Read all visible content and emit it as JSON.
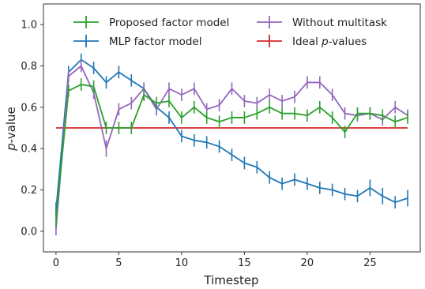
{
  "chart_data": {
    "type": "line",
    "title": "",
    "xlabel": "Timestep",
    "ylabel_prefix": "p",
    "ylabel_suffix": "-value",
    "xlim": [
      -1,
      29
    ],
    "ylim": [
      -0.1,
      1.1
    ],
    "xticks": [
      0,
      5,
      10,
      15,
      20,
      25
    ],
    "xtick_labels": [
      "0",
      "5",
      "10",
      "15",
      "20",
      "25"
    ],
    "yticks": [
      0.0,
      0.2,
      0.4,
      0.6,
      0.8,
      1.0
    ],
    "ytick_labels": [
      "0.0",
      "0.2",
      "0.4",
      "0.6",
      "0.8",
      "1.0"
    ],
    "grid": false,
    "legend_position": "top",
    "x": [
      0,
      1,
      2,
      3,
      4,
      5,
      6,
      7,
      8,
      9,
      10,
      11,
      12,
      13,
      14,
      15,
      16,
      17,
      18,
      19,
      20,
      21,
      22,
      23,
      24,
      25,
      26,
      27,
      28
    ],
    "series": [
      {
        "name": "Proposed factor model",
        "color": "#2ca02c",
        "values": [
          0.06,
          0.68,
          0.71,
          0.7,
          0.5,
          0.5,
          0.5,
          0.66,
          0.62,
          0.63,
          0.55,
          0.6,
          0.55,
          0.53,
          0.55,
          0.55,
          0.57,
          0.6,
          0.57,
          0.57,
          0.56,
          0.6,
          0.55,
          0.48,
          0.57,
          0.57,
          0.56,
          0.53,
          0.55
        ],
        "errors": [
          0.04,
          0.03,
          0.03,
          0.03,
          0.03,
          0.03,
          0.03,
          0.03,
          0.03,
          0.03,
          0.03,
          0.03,
          0.03,
          0.03,
          0.03,
          0.03,
          0.03,
          0.03,
          0.03,
          0.03,
          0.03,
          0.03,
          0.03,
          0.03,
          0.03,
          0.03,
          0.03,
          0.03,
          0.03
        ]
      },
      {
        "name": "MLP factor model",
        "color": "#1f77b4",
        "values": [
          0.1,
          0.77,
          0.83,
          0.79,
          0.72,
          0.77,
          0.73,
          0.69,
          0.6,
          0.55,
          0.46,
          0.44,
          0.43,
          0.41,
          0.37,
          0.33,
          0.31,
          0.26,
          0.23,
          0.25,
          0.23,
          0.21,
          0.2,
          0.18,
          0.17,
          0.21,
          0.17,
          0.14,
          0.16
        ],
        "errors": [
          0.04,
          0.03,
          0.03,
          0.03,
          0.03,
          0.03,
          0.03,
          0.03,
          0.03,
          0.03,
          0.03,
          0.03,
          0.03,
          0.03,
          0.03,
          0.03,
          0.03,
          0.03,
          0.03,
          0.03,
          0.03,
          0.03,
          0.03,
          0.03,
          0.03,
          0.04,
          0.04,
          0.03,
          0.04
        ]
      },
      {
        "name": "Without multitask",
        "color": "#9467bd",
        "values": [
          0.01,
          0.75,
          0.8,
          0.67,
          0.4,
          0.59,
          0.62,
          0.69,
          0.59,
          0.69,
          0.66,
          0.69,
          0.59,
          0.61,
          0.69,
          0.63,
          0.62,
          0.66,
          0.63,
          0.65,
          0.72,
          0.72,
          0.66,
          0.57,
          0.56,
          0.57,
          0.54,
          0.6,
          0.56
        ],
        "errors": [
          0.03,
          0.03,
          0.03,
          0.03,
          0.04,
          0.03,
          0.03,
          0.03,
          0.03,
          0.03,
          0.03,
          0.03,
          0.03,
          0.03,
          0.03,
          0.03,
          0.03,
          0.03,
          0.03,
          0.03,
          0.03,
          0.03,
          0.03,
          0.03,
          0.03,
          0.03,
          0.03,
          0.03,
          0.03
        ]
      },
      {
        "name_prefix": "Ideal ",
        "name_var": "p",
        "name_suffix": "-values",
        "color": "#d62728",
        "values": [
          0.5,
          0.5,
          0.5,
          0.5,
          0.5,
          0.5,
          0.5,
          0.5,
          0.5,
          0.5,
          0.5,
          0.5,
          0.5,
          0.5,
          0.5,
          0.5,
          0.5,
          0.5,
          0.5,
          0.5,
          0.5,
          0.5,
          0.5,
          0.5,
          0.5,
          0.5,
          0.5,
          0.5,
          0.5
        ],
        "errors": [
          0,
          0,
          0,
          0,
          0,
          0,
          0,
          0,
          0,
          0,
          0,
          0,
          0,
          0,
          0,
          0,
          0,
          0,
          0,
          0,
          0,
          0,
          0,
          0,
          0,
          0,
          0,
          0,
          0
        ]
      }
    ]
  }
}
